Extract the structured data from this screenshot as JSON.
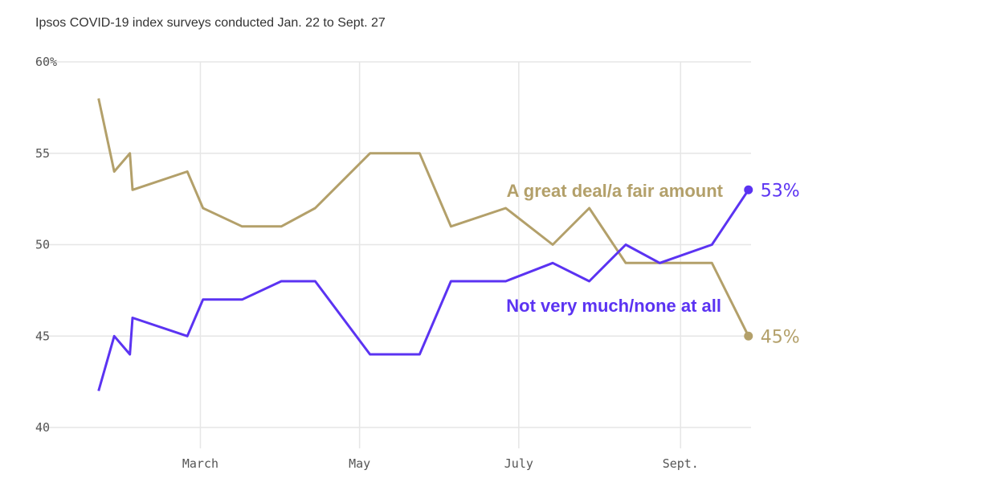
{
  "subtitle": "Ipsos COVID-19 index surveys conducted Jan. 22 to Sept. 27",
  "colors": {
    "series_a": "#b3a06a",
    "series_b": "#5b33f2",
    "grid": "#e6e6e6"
  },
  "chart_data": {
    "type": "line",
    "title": "",
    "subtitle": "Ipsos COVID-19 index surveys conducted Jan. 22 to Sept. 27",
    "xlabel": "",
    "ylabel": "",
    "ylim": [
      40,
      60
    ],
    "xlim": [
      "2020-01-15",
      "2020-09-28"
    ],
    "y_ticks": [
      40,
      45,
      50,
      55,
      60
    ],
    "y_tick_labels": [
      "40",
      "45",
      "50",
      "55",
      "60%"
    ],
    "x_ticks": [
      "2020-03-01",
      "2020-05-01",
      "2020-07-01",
      "2020-09-01"
    ],
    "x_tick_labels": [
      "March",
      "May",
      "July",
      "Sept."
    ],
    "grid": true,
    "legend": "none",
    "x": [
      "2020-01-22",
      "2020-01-28",
      "2020-02-03",
      "2020-02-04",
      "2020-02-25",
      "2020-03-02",
      "2020-03-17",
      "2020-04-01",
      "2020-04-14",
      "2020-05-05",
      "2020-05-24",
      "2020-06-05",
      "2020-06-26",
      "2020-07-14",
      "2020-07-28",
      "2020-08-11",
      "2020-08-24",
      "2020-09-13",
      "2020-09-27"
    ],
    "series": [
      {
        "name": "A great deal/a fair amount",
        "end_label": "45%",
        "values": [
          58,
          54,
          55,
          53,
          54,
          52,
          51,
          51,
          52,
          55,
          55,
          51,
          52,
          50,
          52,
          49,
          49,
          49,
          45
        ]
      },
      {
        "name": "Not very much/none at all",
        "end_label": "53%",
        "values": [
          42,
          45,
          44,
          46,
          45,
          47,
          47,
          48,
          48,
          44,
          44,
          48,
          48,
          49,
          48,
          50,
          49,
          50,
          53
        ]
      }
    ]
  }
}
